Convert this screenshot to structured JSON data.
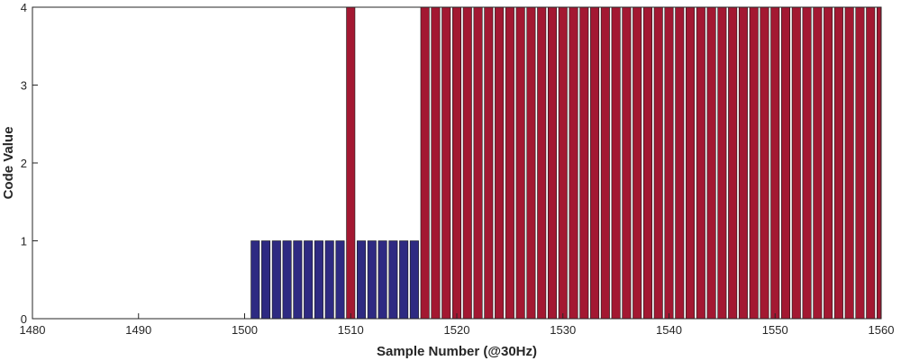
{
  "chart_data": {
    "type": "bar",
    "title": "",
    "xlabel": "Sample Number (@30Hz)",
    "ylabel": "Code Value",
    "xlim": [
      1480,
      1560
    ],
    "ylim": [
      0,
      4
    ],
    "xticks": [
      1480,
      1490,
      1500,
      1510,
      1520,
      1530,
      1540,
      1550,
      1560
    ],
    "yticks": [
      0,
      1,
      2,
      3,
      4
    ],
    "grid": false,
    "legend": "none",
    "series": [
      {
        "color": "#2e2a82",
        "x": [
          1501,
          1502,
          1503,
          1504,
          1505,
          1506,
          1507,
          1508,
          1509,
          1511,
          1512,
          1513,
          1514,
          1515,
          1516
        ],
        "values": [
          1,
          1,
          1,
          1,
          1,
          1,
          1,
          1,
          1,
          1,
          1,
          1,
          1,
          1,
          1
        ]
      },
      {
        "color": "#a31832",
        "x": [
          1510,
          1517,
          1518,
          1519,
          1520,
          1521,
          1522,
          1523,
          1524,
          1525,
          1526,
          1527,
          1528,
          1529,
          1530,
          1531,
          1532,
          1533,
          1534,
          1535,
          1536,
          1537,
          1538,
          1539,
          1540,
          1541,
          1542,
          1543,
          1544,
          1545,
          1546,
          1547,
          1548,
          1549,
          1550,
          1551,
          1552,
          1553,
          1554,
          1555,
          1556,
          1557,
          1558,
          1559,
          1560
        ],
        "values": [
          4,
          4,
          4,
          4,
          4,
          4,
          4,
          4,
          4,
          4,
          4,
          4,
          4,
          4,
          4,
          4,
          4,
          4,
          4,
          4,
          4,
          4,
          4,
          4,
          4,
          4,
          4,
          4,
          4,
          4,
          4,
          4,
          4,
          4,
          4,
          4,
          4,
          4,
          4,
          4,
          4,
          4,
          4,
          4,
          4
        ]
      }
    ]
  }
}
